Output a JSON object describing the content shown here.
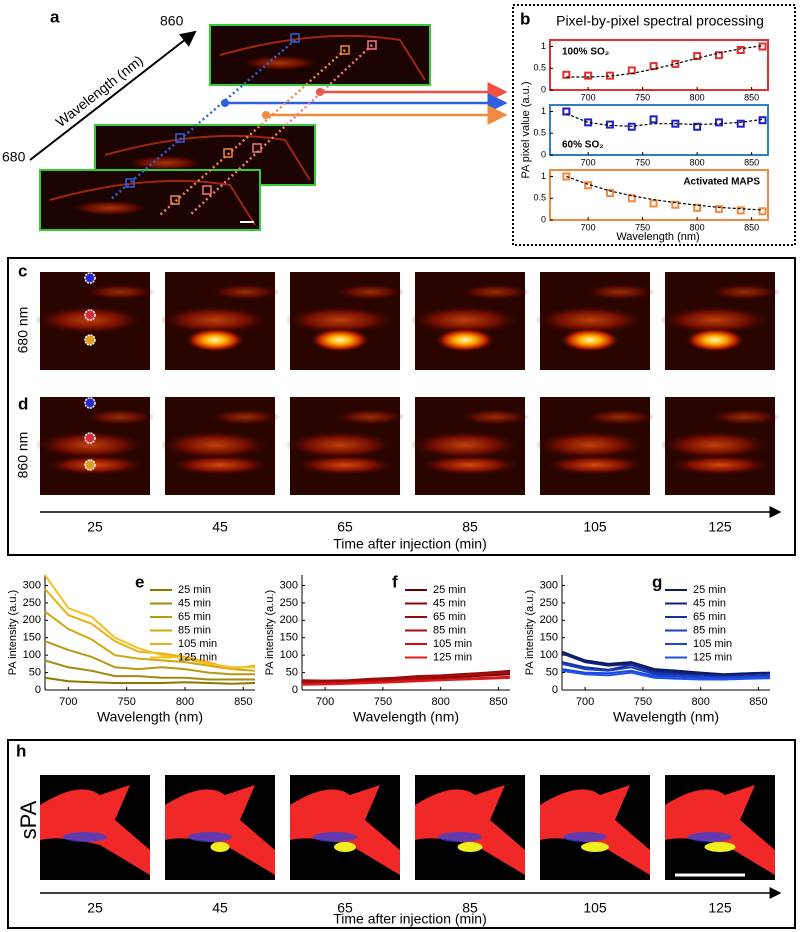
{
  "panels": {
    "a": {
      "label": "a",
      "axis_label": "Wavelength (nm)",
      "end_label": "860",
      "start_label": "680"
    },
    "b": {
      "label": "b",
      "title": "Pixel-by-pixel spectral processing",
      "ylabel": "PA pixel value (a.u.)",
      "xlabel": "Wavelength (nm)"
    },
    "c": {
      "label": "c",
      "row_label": "680 nm"
    },
    "d": {
      "label": "d",
      "row_label": "860 nm"
    },
    "cd": {
      "times": [
        "25",
        "45",
        "65",
        "85",
        "105",
        "125"
      ],
      "xlabel": "Time after injection (min)"
    },
    "h": {
      "label": "h",
      "row_label": "sPA",
      "times": [
        "25",
        "45",
        "65",
        "85",
        "105",
        "125"
      ],
      "xlabel": "Time after injection (min)"
    }
  },
  "chart_data": [
    {
      "type": "line",
      "annotation": "100% SO₂",
      "annotation_position": "upper left",
      "frame_color": "#e03030",
      "x": [
        680,
        700,
        720,
        740,
        760,
        780,
        800,
        820,
        840,
        860
      ],
      "xlim": [
        665,
        865
      ],
      "xticks": [
        700,
        750,
        800,
        850
      ],
      "ylim": [
        0,
        1.15
      ],
      "yticks": [
        0,
        0.5,
        1
      ],
      "series": [
        {
          "color": "#e03030",
          "marker": "square",
          "values": [
            0.35,
            0.33,
            0.33,
            0.45,
            0.55,
            0.6,
            0.78,
            0.8,
            0.92,
            1.0
          ]
        },
        {
          "color": "#000000",
          "linestyle": "dashed",
          "values": [
            0.3,
            0.3,
            0.32,
            0.38,
            0.48,
            0.6,
            0.73,
            0.85,
            0.95,
            1.02
          ]
        }
      ]
    },
    {
      "type": "line",
      "annotation": "60% SO₂",
      "annotation_position": "lower left",
      "frame_color": "#2e7fc8",
      "x": [
        680,
        700,
        720,
        740,
        760,
        780,
        800,
        820,
        840,
        860
      ],
      "xlim": [
        665,
        865
      ],
      "xticks": [
        700,
        750,
        800,
        850
      ],
      "ylim": [
        0,
        1.15
      ],
      "yticks": [
        0,
        0.5,
        1
      ],
      "series": [
        {
          "color": "#2020c0",
          "marker": "square",
          "values": [
            1.0,
            0.75,
            0.7,
            0.65,
            0.82,
            0.72,
            0.65,
            0.75,
            0.72,
            0.8
          ]
        },
        {
          "color": "#000000",
          "linestyle": "dashed",
          "values": [
            0.95,
            0.75,
            0.68,
            0.66,
            0.72,
            0.72,
            0.7,
            0.72,
            0.75,
            0.82
          ]
        }
      ]
    },
    {
      "type": "line",
      "annotation": "Activated MAPS",
      "annotation_position": "upper right",
      "frame_color": "#f08a40",
      "x": [
        680,
        700,
        720,
        740,
        760,
        780,
        800,
        820,
        840,
        860
      ],
      "xlim": [
        665,
        865
      ],
      "xticks": [
        700,
        750,
        800,
        850
      ],
      "ylim": [
        0,
        1.15
      ],
      "yticks": [
        0,
        0.5,
        1
      ],
      "series": [
        {
          "color": "#f08a40",
          "marker": "square",
          "values": [
            1.0,
            0.8,
            0.62,
            0.5,
            0.38,
            0.35,
            0.28,
            0.25,
            0.22,
            0.2
          ]
        },
        {
          "color": "#000000",
          "linestyle": "dashed",
          "values": [
            1.0,
            0.82,
            0.67,
            0.56,
            0.47,
            0.4,
            0.34,
            0.29,
            0.26,
            0.23
          ]
        }
      ]
    },
    {
      "type": "line",
      "panel_label": "e",
      "ylabel": "PA intensity (a.u.)",
      "xlabel": "Wavelength (nm)",
      "legend": "upper right",
      "x": [
        680,
        700,
        720,
        740,
        760,
        780,
        800,
        820,
        840,
        860
      ],
      "xlim": [
        680,
        860
      ],
      "xticks": [
        700,
        750,
        800,
        850
      ],
      "ylim": [
        0,
        330
      ],
      "yticks": [
        0,
        50,
        100,
        150,
        200,
        250,
        300
      ],
      "series": [
        {
          "name": "25 min",
          "color": "#8a7a00",
          "values": [
            35,
            25,
            22,
            20,
            20,
            20,
            22,
            20,
            18,
            20
          ]
        },
        {
          "name": "45 min",
          "color": "#a08a10",
          "values": [
            85,
            65,
            55,
            40,
            40,
            35,
            35,
            30,
            30,
            30
          ]
        },
        {
          "name": "65 min",
          "color": "#b89a10",
          "values": [
            140,
            115,
            95,
            65,
            60,
            65,
            60,
            50,
            45,
            45
          ]
        },
        {
          "name": "85 min",
          "color": "#d0a810",
          "values": [
            225,
            175,
            145,
            100,
            90,
            85,
            80,
            70,
            60,
            55
          ]
        },
        {
          "name": "105 min",
          "color": "#e6b418",
          "values": [
            290,
            215,
            190,
            140,
            110,
            105,
            95,
            80,
            60,
            70
          ]
        },
        {
          "name": "125 min",
          "color": "#f5c020",
          "values": [
            330,
            235,
            210,
            150,
            120,
            100,
            90,
            75,
            65,
            65
          ]
        }
      ]
    },
    {
      "type": "line",
      "panel_label": "f",
      "ylabel": "PA intensity (a.u.)",
      "xlabel": "Wavelength (nm)",
      "legend": "upper right",
      "x": [
        680,
        700,
        720,
        740,
        760,
        780,
        800,
        820,
        840,
        860
      ],
      "xlim": [
        680,
        860
      ],
      "xticks": [
        700,
        750,
        800,
        850
      ],
      "ylim": [
        0,
        330
      ],
      "yticks": [
        0,
        50,
        100,
        150,
        200,
        250,
        300
      ],
      "series": [
        {
          "name": "25 min",
          "color": "#6b0000",
          "values": [
            20,
            20,
            22,
            25,
            28,
            32,
            35,
            38,
            42,
            45
          ]
        },
        {
          "name": "45 min",
          "color": "#800808",
          "values": [
            25,
            24,
            26,
            30,
            33,
            38,
            40,
            44,
            48,
            52
          ]
        },
        {
          "name": "65 min",
          "color": "#950a0a",
          "values": [
            28,
            27,
            28,
            32,
            35,
            40,
            42,
            46,
            50,
            55
          ]
        },
        {
          "name": "85 min",
          "color": "#aa0c0c",
          "values": [
            22,
            22,
            24,
            27,
            30,
            34,
            38,
            42,
            46,
            50
          ]
        },
        {
          "name": "105 min",
          "color": "#c81010",
          "values": [
            18,
            18,
            20,
            22,
            25,
            28,
            30,
            32,
            35,
            38
          ]
        },
        {
          "name": "125 min",
          "color": "#e01a1a",
          "values": [
            15,
            16,
            18,
            20,
            22,
            25,
            28,
            30,
            32,
            35
          ]
        }
      ]
    },
    {
      "type": "line",
      "panel_label": "g",
      "ylabel": "PA intensity (a.u.)",
      "xlabel": "Wavelength (nm)",
      "legend": "upper right",
      "x": [
        680,
        700,
        720,
        740,
        760,
        780,
        800,
        820,
        840,
        860
      ],
      "xlim": [
        680,
        860
      ],
      "xticks": [
        700,
        750,
        800,
        850
      ],
      "ylim": [
        0,
        330
      ],
      "yticks": [
        0,
        50,
        100,
        150,
        200,
        250,
        300
      ],
      "series": [
        {
          "name": "25 min",
          "color": "#0a1a5a",
          "values": [
            110,
            85,
            75,
            80,
            60,
            55,
            50,
            45,
            48,
            50
          ]
        },
        {
          "name": "45 min",
          "color": "#101f7a",
          "values": [
            105,
            80,
            70,
            75,
            55,
            50,
            45,
            42,
            45,
            48
          ]
        },
        {
          "name": "65 min",
          "color": "#1530a0",
          "values": [
            80,
            65,
            58,
            72,
            50,
            45,
            40,
            38,
            40,
            42
          ]
        },
        {
          "name": "85 min",
          "color": "#1a3cc0",
          "values": [
            75,
            60,
            55,
            65,
            45,
            40,
            38,
            36,
            38,
            40
          ]
        },
        {
          "name": "105 min",
          "color": "#1c48d8",
          "values": [
            60,
            50,
            48,
            55,
            40,
            38,
            35,
            34,
            36,
            38
          ]
        },
        {
          "name": "125 min",
          "color": "#2050f0",
          "values": [
            55,
            45,
            42,
            50,
            35,
            32,
            30,
            30,
            32,
            34
          ]
        }
      ]
    }
  ]
}
